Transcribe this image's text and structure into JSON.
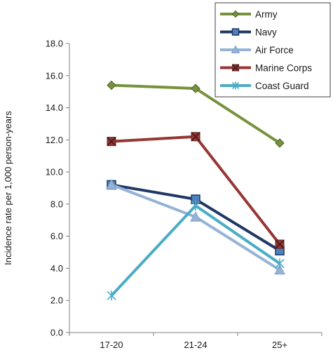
{
  "chart_data": {
    "type": "line",
    "categories": [
      "17-20",
      "21-24",
      "25+"
    ],
    "ylabel": "Incidence rate per 1,000 person-years",
    "ylim": [
      0,
      18
    ],
    "yticks": [
      "0.0",
      "2.0",
      "4.0",
      "6.0",
      "8.0",
      "10.0",
      "12.0",
      "14.0",
      "16.0",
      "18.0"
    ],
    "grid": false,
    "legend_position": "top-right",
    "series": [
      {
        "name": "Army",
        "values": [
          15.4,
          15.2,
          11.8
        ],
        "color": "#76923c",
        "marker": "diamond"
      },
      {
        "name": "Navy",
        "values": [
          9.2,
          8.3,
          5.1
        ],
        "color": "#1f3864",
        "marker": "square"
      },
      {
        "name": "Air Force",
        "values": [
          9.2,
          7.2,
          3.9
        ],
        "color": "#95b3d7",
        "marker": "triangle"
      },
      {
        "name": "Marine Corps",
        "values": [
          11.9,
          12.2,
          5.5
        ],
        "color": "#953735",
        "marker": "x-square"
      },
      {
        "name": "Coast Guard",
        "values": [
          2.3,
          7.9,
          4.3
        ],
        "color": "#4bacc6",
        "marker": "star"
      }
    ]
  }
}
